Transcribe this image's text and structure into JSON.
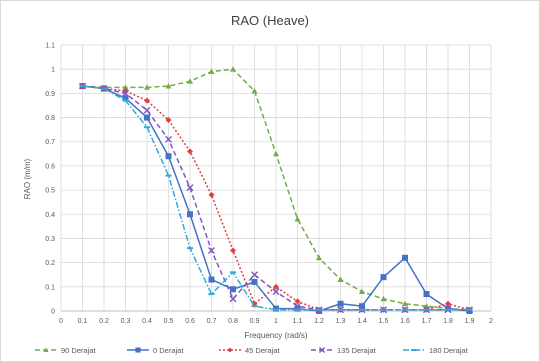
{
  "chart_data": {
    "type": "line",
    "title": "RAO (Heave)",
    "xlabel": "Frequency (rad/s)",
    "ylabel": "RAO (m/m)",
    "xlim": [
      0,
      2
    ],
    "ylim": [
      0,
      1.1
    ],
    "x_ticks": [
      "0",
      "0.1",
      "0.2",
      "0.3",
      "0.4",
      "0.5",
      "0.6",
      "0.7",
      "0.8",
      "0.9",
      "1",
      "1.1",
      "1.2",
      "1.3",
      "1.4",
      "1.5",
      "1.6",
      "1.7",
      "1.8",
      "1.9",
      "2"
    ],
    "y_ticks": [
      "0",
      "0.1",
      "0.2",
      "0.3",
      "0.4",
      "0.5",
      "0.6",
      "0.7",
      "0.8",
      "0.9",
      "1",
      "1.1"
    ],
    "grid": true,
    "legend_position": "bottom",
    "series": [
      {
        "name": "90 Derajat",
        "color": "#70ad47",
        "dash": "dash",
        "marker": "triangle",
        "x": [
          0.1,
          0.2,
          0.3,
          0.4,
          0.5,
          0.6,
          0.7,
          0.8,
          0.9,
          1.0,
          1.1,
          1.2,
          1.3,
          1.4,
          1.5,
          1.6,
          1.7,
          1.8,
          1.9
        ],
        "y": [
          0.93,
          0.925,
          0.925,
          0.925,
          0.93,
          0.95,
          0.99,
          1.0,
          0.91,
          0.65,
          0.38,
          0.22,
          0.13,
          0.08,
          0.05,
          0.03,
          0.02,
          0.01,
          0.005
        ]
      },
      {
        "name": "0 Derajat",
        "color": "#4472c4",
        "dash": "solid",
        "marker": "square",
        "x": [
          0.1,
          0.2,
          0.3,
          0.4,
          0.5,
          0.6,
          0.7,
          0.8,
          0.9,
          1.0,
          1.1,
          1.2,
          1.3,
          1.4,
          1.5,
          1.6,
          1.7,
          1.8,
          1.9
        ],
        "y": [
          0.93,
          0.92,
          0.88,
          0.8,
          0.64,
          0.4,
          0.13,
          0.09,
          0.12,
          0.01,
          0.01,
          0.0,
          0.03,
          0.02,
          0.14,
          0.22,
          0.07,
          0.01,
          0.0
        ]
      },
      {
        "name": "45 Derajat",
        "color": "#e04040",
        "dash": "dot",
        "marker": "diamond",
        "x": [
          0.1,
          0.2,
          0.3,
          0.4,
          0.5,
          0.6,
          0.7,
          0.8,
          0.9,
          1.0,
          1.1,
          1.2,
          1.3,
          1.4,
          1.5,
          1.6,
          1.7,
          1.8,
          1.9
        ],
        "y": [
          0.93,
          0.92,
          0.91,
          0.87,
          0.79,
          0.66,
          0.48,
          0.25,
          0.03,
          0.1,
          0.04,
          0.005,
          0.005,
          0.005,
          0.005,
          0.005,
          0.005,
          0.03,
          0.005
        ]
      },
      {
        "name": "135 Derajat",
        "color": "#7e57c2",
        "dash": "dash",
        "marker": "x",
        "x": [
          0.1,
          0.2,
          0.3,
          0.4,
          0.5,
          0.6,
          0.7,
          0.8,
          0.9,
          1.0,
          1.1,
          1.2,
          1.3,
          1.4,
          1.5,
          1.6,
          1.7,
          1.8,
          1.9
        ],
        "y": [
          0.93,
          0.92,
          0.9,
          0.83,
          0.71,
          0.51,
          0.25,
          0.05,
          0.15,
          0.08,
          0.02,
          0.005,
          0.005,
          0.005,
          0.005,
          0.005,
          0.005,
          0.005,
          0.005
        ]
      },
      {
        "name": "180 Derajat",
        "color": "#2eaadc",
        "dash": "dashdot",
        "marker": "dash",
        "x": [
          0.1,
          0.2,
          0.3,
          0.4,
          0.5,
          0.6,
          0.7,
          0.8,
          0.9,
          1.0,
          1.1,
          1.2,
          1.3,
          1.4,
          1.5,
          1.6,
          1.7,
          1.8,
          1.9
        ],
        "y": [
          0.93,
          0.92,
          0.87,
          0.76,
          0.56,
          0.26,
          0.07,
          0.16,
          0.02,
          0.005,
          0.005,
          0.005,
          0.005,
          0.005,
          0.005,
          0.005,
          0.005,
          0.005,
          0.005
        ]
      }
    ]
  }
}
